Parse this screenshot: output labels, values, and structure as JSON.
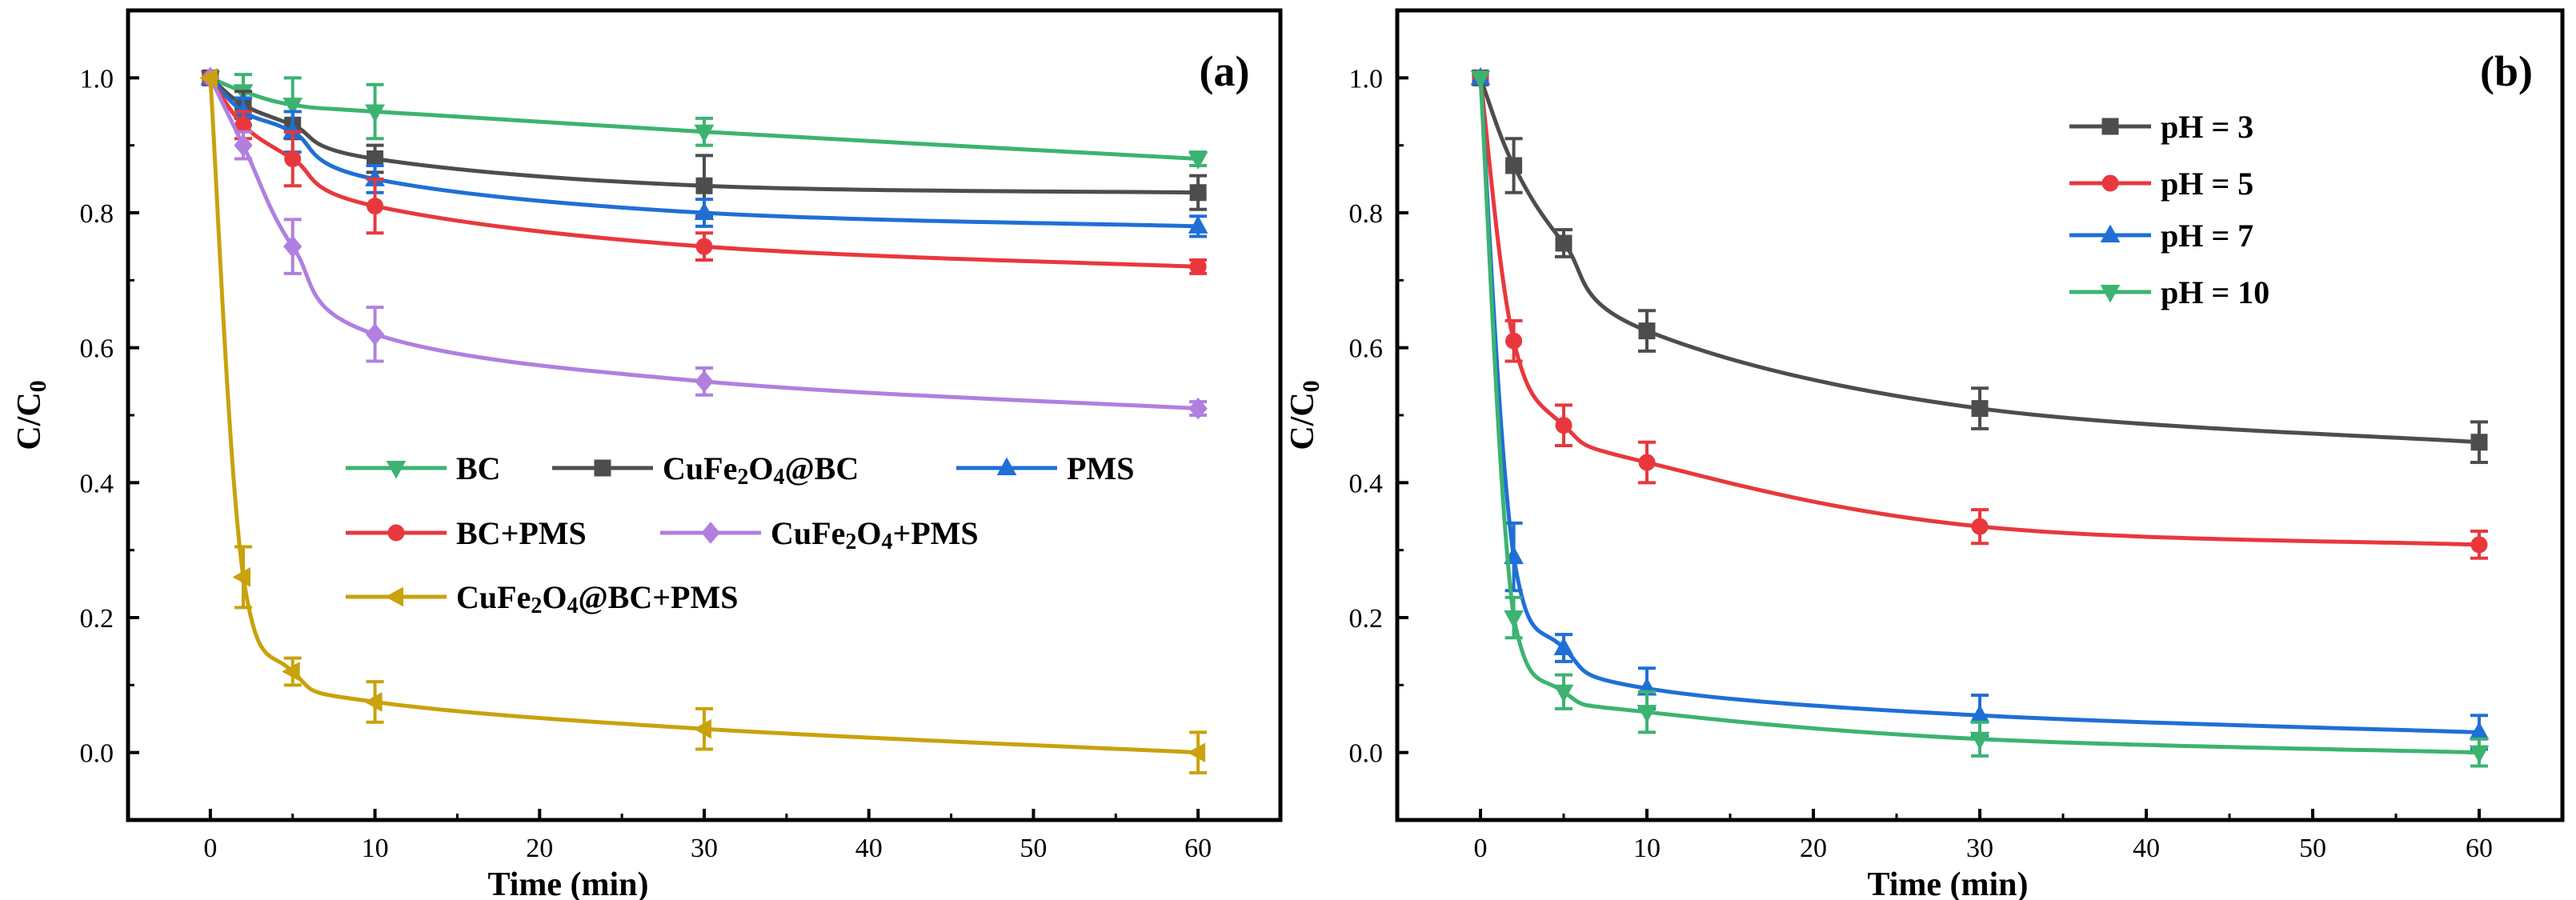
{
  "chart_data": [
    {
      "type": "line",
      "panel_label": "(a)",
      "xlabel": "Time (min)",
      "ylabel": "C/C0",
      "ylabel_main": "C/C",
      "ylabel_sub": "0",
      "xlim": [
        -5,
        65
      ],
      "ylim": [
        -0.1,
        1.1
      ],
      "xticks": [
        0,
        10,
        20,
        30,
        40,
        50,
        60
      ],
      "xtick_labels": [
        "0",
        "10",
        "20",
        "30",
        "40",
        "50",
        "60"
      ],
      "yticks": [
        0.0,
        0.2,
        0.4,
        0.6,
        0.8,
        1.0
      ],
      "ytick_labels": [
        "0.0",
        "0.2",
        "0.4",
        "0.6",
        "0.8",
        "1.0"
      ],
      "legend_location": "center",
      "series": [
        {
          "name": "BC",
          "parts": [
            {
              "t": "BC"
            }
          ],
          "color": "#3cb371",
          "marker": "triangle-down",
          "x": [
            0,
            2,
            5,
            10,
            30,
            60
          ],
          "y": [
            1.0,
            0.98,
            0.96,
            0.95,
            0.92,
            0.88
          ],
          "err": [
            0,
            0.025,
            0.04,
            0.04,
            0.02,
            0.01
          ]
        },
        {
          "name": "CuFe2O4@BC",
          "parts": [
            {
              "t": "CuFe"
            },
            {
              "t": "2",
              "sub": true
            },
            {
              "t": "O"
            },
            {
              "t": "4",
              "sub": true
            },
            {
              "t": "@BC"
            }
          ],
          "color": "#4d4d4d",
          "marker": "square",
          "x": [
            0,
            2,
            5,
            10,
            30,
            60
          ],
          "y": [
            1.0,
            0.96,
            0.93,
            0.88,
            0.84,
            0.83
          ],
          "err": [
            0,
            0.02,
            0.02,
            0.02,
            0.045,
            0.025
          ]
        },
        {
          "name": "PMS",
          "parts": [
            {
              "t": "PMS"
            }
          ],
          "color": "#1f6fd6",
          "marker": "triangle-up",
          "x": [
            0,
            2,
            5,
            10,
            30,
            60
          ],
          "y": [
            1.0,
            0.95,
            0.92,
            0.85,
            0.8,
            0.78
          ],
          "err": [
            0,
            0.02,
            0.03,
            0.02,
            0.02,
            0.015
          ]
        },
        {
          "name": "BC+PMS",
          "parts": [
            {
              "t": "BC+PMS"
            }
          ],
          "color": "#e8383d",
          "marker": "circle",
          "x": [
            0,
            2,
            5,
            10,
            30,
            60
          ],
          "y": [
            1.0,
            0.93,
            0.88,
            0.81,
            0.75,
            0.72
          ],
          "err": [
            0,
            0.02,
            0.04,
            0.04,
            0.02,
            0.01
          ]
        },
        {
          "name": "CuFe2O4+PMS",
          "parts": [
            {
              "t": "CuFe"
            },
            {
              "t": "2",
              "sub": true
            },
            {
              "t": "O"
            },
            {
              "t": "4",
              "sub": true
            },
            {
              "t": "+PMS"
            }
          ],
          "color": "#b07fe0",
          "marker": "diamond",
          "x": [
            0,
            2,
            5,
            10,
            30,
            60
          ],
          "y": [
            1.0,
            0.9,
            0.75,
            0.62,
            0.55,
            0.51
          ],
          "err": [
            0,
            0.02,
            0.04,
            0.04,
            0.02,
            0.01
          ]
        },
        {
          "name": "CuFe2O4@BC+PMS",
          "parts": [
            {
              "t": "CuFe"
            },
            {
              "t": "2",
              "sub": true
            },
            {
              "t": "O"
            },
            {
              "t": "4",
              "sub": true
            },
            {
              "t": "@BC+PMS"
            }
          ],
          "color": "#c9a20c",
          "marker": "triangle-left",
          "x": [
            0,
            2,
            5,
            10,
            30,
            60
          ],
          "y": [
            1.0,
            0.26,
            0.12,
            0.075,
            0.035,
            0.0
          ],
          "err": [
            0,
            0.045,
            0.02,
            0.03,
            0.03,
            0.03
          ]
        }
      ]
    },
    {
      "type": "line",
      "panel_label": "(b)",
      "xlabel": "Time (min)",
      "ylabel": "C/C0",
      "ylabel_main": "C/C",
      "ylabel_sub": "0",
      "xlim": [
        -5,
        65
      ],
      "ylim": [
        -0.1,
        1.1
      ],
      "xticks": [
        0,
        10,
        20,
        30,
        40,
        50,
        60
      ],
      "xtick_labels": [
        "0",
        "10",
        "20",
        "30",
        "40",
        "50",
        "60"
      ],
      "yticks": [
        0.0,
        0.2,
        0.4,
        0.6,
        0.8,
        1.0
      ],
      "ytick_labels": [
        "0.0",
        "0.2",
        "0.4",
        "0.6",
        "0.8",
        "1.0"
      ],
      "legend_location": "top-left",
      "series": [
        {
          "name": "pH = 3",
          "parts": [
            {
              "t": "pH = 3"
            }
          ],
          "color": "#4d4d4d",
          "marker": "square",
          "x": [
            0,
            2,
            5,
            10,
            30,
            60
          ],
          "y": [
            1.0,
            0.87,
            0.755,
            0.625,
            0.51,
            0.46
          ],
          "err": [
            0,
            0.04,
            0.02,
            0.03,
            0.03,
            0.03
          ]
        },
        {
          "name": "pH = 5",
          "parts": [
            {
              "t": "pH = 5"
            }
          ],
          "color": "#e8383d",
          "marker": "circle",
          "x": [
            0,
            2,
            5,
            10,
            30,
            60
          ],
          "y": [
            1.0,
            0.61,
            0.485,
            0.43,
            0.335,
            0.308
          ],
          "err": [
            0,
            0.03,
            0.03,
            0.03,
            0.025,
            0.02
          ]
        },
        {
          "name": "pH = 7",
          "parts": [
            {
              "t": "pH = 7"
            }
          ],
          "color": "#1f6fd6",
          "marker": "triangle-up",
          "x": [
            0,
            2,
            5,
            10,
            30,
            60
          ],
          "y": [
            1.0,
            0.29,
            0.155,
            0.095,
            0.055,
            0.03
          ],
          "err": [
            0,
            0.05,
            0.02,
            0.03,
            0.03,
            0.025
          ]
        },
        {
          "name": "pH = 10",
          "parts": [
            {
              "t": "pH = 10"
            }
          ],
          "color": "#3cb371",
          "marker": "triangle-down",
          "x": [
            0,
            2,
            5,
            10,
            30,
            60
          ],
          "y": [
            1.0,
            0.2,
            0.09,
            0.06,
            0.02,
            0.0
          ],
          "err": [
            0,
            0.03,
            0.025,
            0.03,
            0.025,
            0.02
          ]
        }
      ]
    }
  ]
}
